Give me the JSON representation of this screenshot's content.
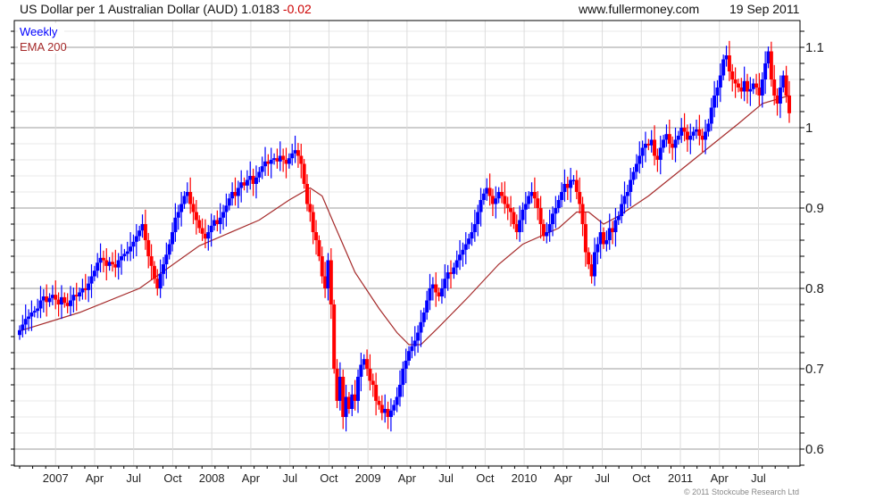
{
  "header": {
    "title": "US Dollar per 1 Australian Dollar (AUD) 1.0183",
    "change": "-0.02",
    "site": "www.fullermoney.com",
    "date": "19 Sep 2011"
  },
  "legend": {
    "series": "Weekly",
    "ema": "EMA 200"
  },
  "copyright": "© 2011 Stockcube Research Ltd",
  "colors": {
    "up": "#0000ff",
    "down": "#ff0000",
    "ema": "#a52a2a",
    "change": "#cc0000"
  },
  "chart_data": {
    "type": "candlestick",
    "title": "US Dollar per 1 Australian Dollar (AUD)",
    "frequency": "weekly",
    "ylim": [
      0.579,
      1.133
    ],
    "y_ticks": [
      "0.6",
      "0.7",
      "0.8",
      "0.9",
      "1",
      "1.1"
    ],
    "y_tick_values": [
      0.6,
      0.7,
      0.8,
      0.9,
      1.0,
      1.1
    ],
    "x_ticks": [
      "2007",
      "Apr",
      "Jul",
      "Oct",
      "2008",
      "Apr",
      "Jul",
      "Oct",
      "2009",
      "Apr",
      "Jul",
      "Oct",
      "2010",
      "Apr",
      "Jul",
      "Oct",
      "2011",
      "Apr",
      "Jul"
    ],
    "x_tick_first_week": 12,
    "weeks_per_quarter": 13.04,
    "first_open": 0.742,
    "close": [
      0.748,
      0.755,
      0.762,
      0.765,
      0.77,
      0.772,
      0.775,
      0.785,
      0.79,
      0.783,
      0.788,
      0.792,
      0.786,
      0.78,
      0.789,
      0.782,
      0.778,
      0.785,
      0.792,
      0.79,
      0.795,
      0.8,
      0.798,
      0.806,
      0.815,
      0.822,
      0.832,
      0.838,
      0.835,
      0.828,
      0.833,
      0.83,
      0.826,
      0.835,
      0.84,
      0.843,
      0.846,
      0.852,
      0.858,
      0.865,
      0.872,
      0.88,
      0.86,
      0.84,
      0.828,
      0.812,
      0.8,
      0.818,
      0.83,
      0.842,
      0.855,
      0.87,
      0.888,
      0.895,
      0.905,
      0.915,
      0.92,
      0.905,
      0.895,
      0.885,
      0.875,
      0.868,
      0.862,
      0.87,
      0.878,
      0.885,
      0.88,
      0.888,
      0.895,
      0.903,
      0.912,
      0.92,
      0.915,
      0.925,
      0.932,
      0.928,
      0.935,
      0.94,
      0.93,
      0.938,
      0.945,
      0.952,
      0.958,
      0.955,
      0.96,
      0.962,
      0.958,
      0.965,
      0.96,
      0.955,
      0.962,
      0.968,
      0.972,
      0.965,
      0.955,
      0.93,
      0.905,
      0.895,
      0.87,
      0.86,
      0.84,
      0.815,
      0.8,
      0.835,
      0.78,
      0.7,
      0.66,
      0.69,
      0.64,
      0.665,
      0.65,
      0.668,
      0.66,
      0.69,
      0.705,
      0.712,
      0.7,
      0.685,
      0.68,
      0.66,
      0.655,
      0.645,
      0.65,
      0.64,
      0.648,
      0.655,
      0.665,
      0.68,
      0.7,
      0.71,
      0.722,
      0.728,
      0.735,
      0.745,
      0.758,
      0.77,
      0.785,
      0.8,
      0.805,
      0.795,
      0.79,
      0.8,
      0.812,
      0.82,
      0.818,
      0.826,
      0.835,
      0.842,
      0.848,
      0.855,
      0.862,
      0.87,
      0.88,
      0.895,
      0.91,
      0.918,
      0.925,
      0.915,
      0.905,
      0.912,
      0.92,
      0.915,
      0.905,
      0.9,
      0.895,
      0.88,
      0.87,
      0.885,
      0.898,
      0.905,
      0.915,
      0.92,
      0.912,
      0.9,
      0.88,
      0.865,
      0.87,
      0.88,
      0.893,
      0.9,
      0.91,
      0.92,
      0.93,
      0.925,
      0.935,
      0.935,
      0.92,
      0.905,
      0.88,
      0.845,
      0.83,
      0.815,
      0.845,
      0.855,
      0.87,
      0.855,
      0.86,
      0.875,
      0.87,
      0.885,
      0.89,
      0.905,
      0.915,
      0.92,
      0.935,
      0.945,
      0.955,
      0.965,
      0.975,
      0.98,
      0.978,
      0.985,
      0.965,
      0.96,
      0.975,
      0.985,
      0.992,
      0.98,
      0.975,
      0.985,
      0.99,
      1.0,
      0.995,
      0.985,
      0.99,
      0.995,
      0.998,
      0.99,
      0.985,
      0.995,
      1.005,
      1.025,
      1.04,
      1.05,
      1.065,
      1.085,
      1.09,
      1.07,
      1.06,
      1.055,
      1.05,
      1.045,
      1.058,
      1.045,
      1.048,
      1.055,
      1.05,
      1.04,
      1.06,
      1.08,
      1.095,
      1.06,
      1.04,
      1.03,
      1.05,
      1.065,
      1.04,
      1.018
    ],
    "ema200": [
      [
        0,
        0.747
      ],
      [
        20,
        0.77
      ],
      [
        40,
        0.8
      ],
      [
        60,
        0.853
      ],
      [
        80,
        0.885
      ],
      [
        90,
        0.91
      ],
      [
        97,
        0.925
      ],
      [
        101,
        0.915
      ],
      [
        105,
        0.88
      ],
      [
        112,
        0.82
      ],
      [
        120,
        0.775
      ],
      [
        126,
        0.745
      ],
      [
        130,
        0.73
      ],
      [
        134,
        0.73
      ],
      [
        140,
        0.752
      ],
      [
        150,
        0.79
      ],
      [
        160,
        0.83
      ],
      [
        168,
        0.855
      ],
      [
        180,
        0.875
      ],
      [
        186,
        0.895
      ],
      [
        190,
        0.895
      ],
      [
        195,
        0.88
      ],
      [
        200,
        0.89
      ],
      [
        210,
        0.915
      ],
      [
        220,
        0.945
      ],
      [
        230,
        0.975
      ],
      [
        240,
        1.005
      ],
      [
        248,
        1.03
      ],
      [
        257,
        1.04
      ]
    ],
    "legend": [
      "Weekly",
      "EMA 200"
    ],
    "legend_position": "top-left",
    "grid": true
  }
}
